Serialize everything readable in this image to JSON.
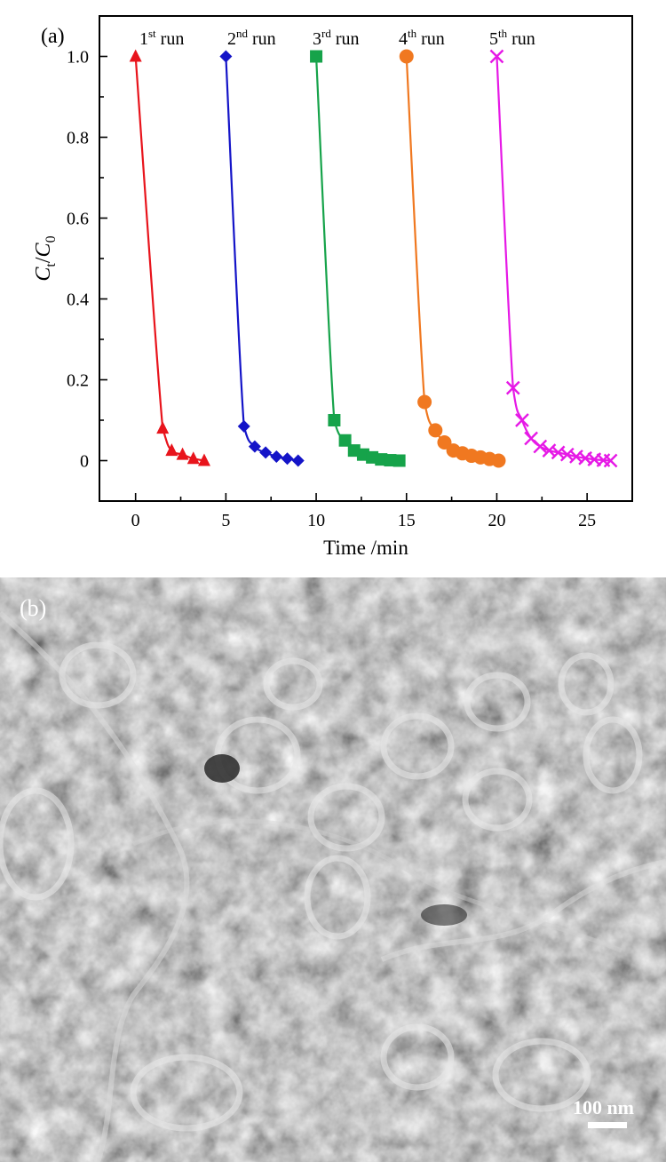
{
  "panel_a_label": "(a)",
  "panel_b_label": "(b)",
  "scale_bar_label": "100 nm",
  "chart_data": {
    "type": "line",
    "xlabel": "Time /min",
    "ylabel": "C_t/C_0",
    "xlim": [
      -2,
      27.5
    ],
    "ylim": [
      -0.1,
      1.1
    ],
    "x_ticks": [
      0,
      5,
      10,
      15,
      20,
      25
    ],
    "y_ticks": [
      0,
      0.2,
      0.4,
      0.6,
      0.8,
      1.0
    ],
    "y_tick_labels": [
      "0",
      "0.2",
      "0.4",
      "0.6",
      "0.8",
      "1.0"
    ],
    "grid": false,
    "series": [
      {
        "name": "1st run",
        "color": "#e8141c",
        "marker": "triangle",
        "x": [
          0,
          1.5,
          2,
          2.6,
          3.2,
          3.8
        ],
        "y": [
          1.0,
          0.08,
          0.025,
          0.015,
          0.005,
          0.0
        ]
      },
      {
        "name": "2nd run",
        "color": "#1414c8",
        "marker": "diamond",
        "x": [
          5,
          6,
          6.6,
          7.2,
          7.8,
          8.4,
          9
        ],
        "y": [
          1.0,
          0.085,
          0.035,
          0.02,
          0.01,
          0.005,
          0.0
        ]
      },
      {
        "name": "3rd run",
        "color": "#16a34a",
        "marker": "square",
        "x": [
          10,
          11,
          11.6,
          12.1,
          12.6,
          13.1,
          13.6,
          14.1,
          14.6
        ],
        "y": [
          1.0,
          0.1,
          0.05,
          0.025,
          0.015,
          0.008,
          0.003,
          0.001,
          0.0
        ]
      },
      {
        "name": "4th run",
        "color": "#f07820",
        "marker": "circle",
        "x": [
          15,
          16,
          16.6,
          17.1,
          17.6,
          18.1,
          18.6,
          19.1,
          19.6,
          20.1
        ],
        "y": [
          1.0,
          0.145,
          0.075,
          0.045,
          0.025,
          0.018,
          0.012,
          0.008,
          0.004,
          0.0
        ]
      },
      {
        "name": "5th run",
        "color": "#e619e6",
        "marker": "x",
        "x": [
          20,
          20.9,
          21.4,
          21.9,
          22.4,
          22.9,
          23.4,
          23.9,
          24.4,
          24.9,
          25.4,
          25.9,
          26.3
        ],
        "y": [
          1.0,
          0.18,
          0.1,
          0.055,
          0.035,
          0.025,
          0.02,
          0.015,
          0.01,
          0.006,
          0.003,
          0.001,
          0.0
        ]
      }
    ],
    "run_labels": [
      {
        "base": "1",
        "sup": "st",
        "text": " run"
      },
      {
        "base": "2",
        "sup": "nd",
        "text": " run"
      },
      {
        "base": "3",
        "sup": "rd",
        "text": " run"
      },
      {
        "base": "4",
        "sup": "th",
        "text": " run"
      },
      {
        "base": "5",
        "sup": "th",
        "text": " run"
      }
    ]
  }
}
